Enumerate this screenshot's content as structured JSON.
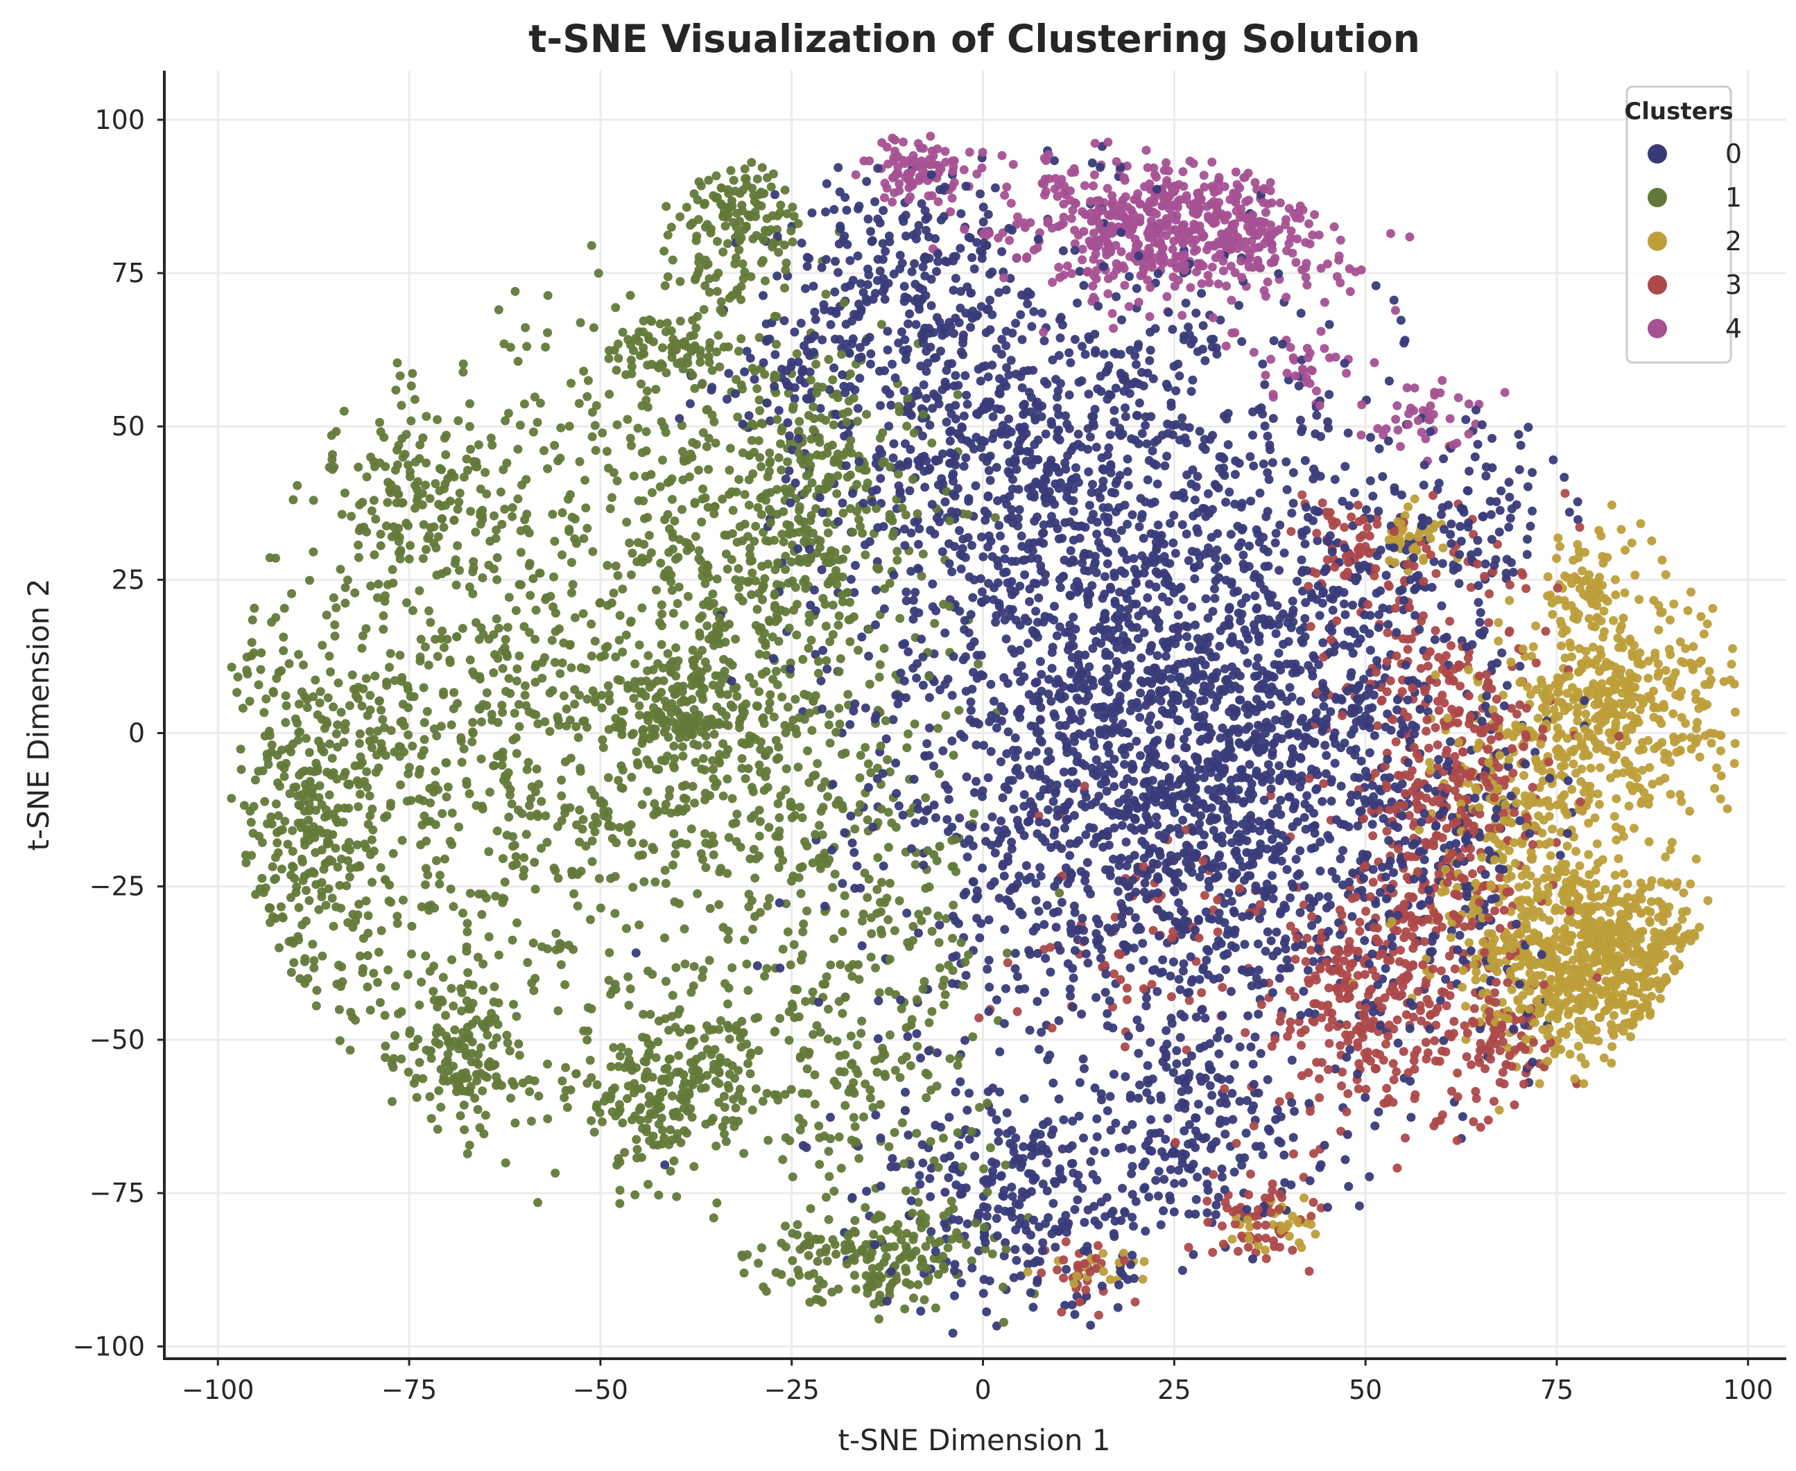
{
  "chart_data": {
    "type": "scatter",
    "title": "t-SNE Visualization of Clustering Solution",
    "xlabel": "t-SNE Dimension 1",
    "ylabel": "t-SNE Dimension 2",
    "xlim": [
      -107,
      105
    ],
    "ylim": [
      -102,
      108
    ],
    "x_ticks": [
      -100,
      -75,
      -50,
      -25,
      0,
      25,
      50,
      75,
      100
    ],
    "y_ticks": [
      -100,
      -75,
      -50,
      -25,
      0,
      25,
      50,
      75,
      100
    ],
    "x_tick_labels": [
      "−100",
      "−75",
      "−50",
      "−25",
      "0",
      "25",
      "50",
      "75",
      "100"
    ],
    "y_tick_labels": [
      "−100",
      "−75",
      "−50",
      "−25",
      "0",
      "25",
      "50",
      "75",
      "100"
    ],
    "grid": true,
    "legend": {
      "title": "Clusters",
      "placement": "top-right",
      "entries": [
        "0",
        "1",
        "2",
        "3",
        "4"
      ]
    },
    "series": [
      {
        "name": "0",
        "color": "#393b79",
        "regions": [
          {
            "cx": 18,
            "cy": 20,
            "sx": 18,
            "sy": 28,
            "n": 1400
          },
          {
            "cx": 25,
            "cy": -20,
            "sx": 17,
            "sy": 18,
            "n": 900
          },
          {
            "cx": 0,
            "cy": 50,
            "sx": 12,
            "sy": 14,
            "n": 400
          },
          {
            "cx": -10,
            "cy": 75,
            "sx": 8,
            "sy": 10,
            "n": 220
          },
          {
            "cx": 40,
            "cy": 10,
            "sx": 12,
            "sy": 18,
            "n": 450
          },
          {
            "cx": 5,
            "cy": -75,
            "sx": 10,
            "sy": 9,
            "n": 300
          },
          {
            "cx": 30,
            "cy": -65,
            "sx": 8,
            "sy": 8,
            "n": 180
          },
          {
            "cx": 60,
            "cy": -20,
            "sx": 8,
            "sy": 20,
            "n": 200
          },
          {
            "cx": 65,
            "cy": 35,
            "sx": 5,
            "sy": 7,
            "n": 80
          },
          {
            "cx": -25,
            "cy": 60,
            "sx": 6,
            "sy": 5,
            "n": 60
          }
        ]
      },
      {
        "name": "1",
        "color": "#637939",
        "regions": [
          {
            "cx": -60,
            "cy": 0,
            "sx": 20,
            "sy": 32,
            "n": 1100
          },
          {
            "cx": -88,
            "cy": -15,
            "sx": 5,
            "sy": 16,
            "n": 250
          },
          {
            "cx": -30,
            "cy": 20,
            "sx": 10,
            "sy": 25,
            "n": 500
          },
          {
            "cx": -68,
            "cy": -52,
            "sx": 4,
            "sy": 6,
            "n": 140
          },
          {
            "cx": -45,
            "cy": -60,
            "sx": 5,
            "sy": 6,
            "n": 130
          },
          {
            "cx": -35,
            "cy": -55,
            "sx": 4,
            "sy": 6,
            "n": 90
          },
          {
            "cx": -32,
            "cy": 83,
            "sx": 4,
            "sy": 6,
            "n": 150
          },
          {
            "cx": -15,
            "cy": -85,
            "sx": 8,
            "sy": 4,
            "n": 180
          },
          {
            "cx": -15,
            "cy": -40,
            "sx": 8,
            "sy": 20,
            "n": 300
          },
          {
            "cx": -75,
            "cy": 40,
            "sx": 5,
            "sy": 6,
            "n": 100
          },
          {
            "cx": -40,
            "cy": 3,
            "sx": 4,
            "sy": 4,
            "n": 120
          },
          {
            "cx": -20,
            "cy": 40,
            "sx": 8,
            "sy": 12,
            "n": 200
          },
          {
            "cx": -42,
            "cy": 62,
            "sx": 5,
            "sy": 3,
            "n": 80
          }
        ]
      },
      {
        "name": "2",
        "color": "#bd9e39",
        "regions": [
          {
            "cx": 80,
            "cy": -38,
            "sx": 9,
            "sy": 8,
            "n": 700
          },
          {
            "cx": 82,
            "cy": 3,
            "sx": 8,
            "sy": 10,
            "n": 450
          },
          {
            "cx": 70,
            "cy": -15,
            "sx": 6,
            "sy": 12,
            "n": 200
          },
          {
            "cx": 78,
            "cy": 25,
            "sx": 3,
            "sy": 4,
            "n": 60
          },
          {
            "cx": 56,
            "cy": 32,
            "sx": 2,
            "sy": 3,
            "n": 40
          },
          {
            "cx": 38,
            "cy": -80,
            "sx": 2.5,
            "sy": 2.5,
            "n": 30
          },
          {
            "cx": 15,
            "cy": -88,
            "sx": 3,
            "sy": 2,
            "n": 20
          }
        ]
      },
      {
        "name": "3",
        "color": "#ad494a",
        "regions": [
          {
            "cx": 60,
            "cy": -10,
            "sx": 7,
            "sy": 20,
            "n": 500
          },
          {
            "cx": 50,
            "cy": -45,
            "sx": 6,
            "sy": 10,
            "n": 250
          },
          {
            "cx": 68,
            "cy": -50,
            "sx": 4,
            "sy": 5,
            "n": 70
          },
          {
            "cx": 36,
            "cy": -78,
            "sx": 4,
            "sy": 4,
            "n": 60
          },
          {
            "cx": 14,
            "cy": -88,
            "sx": 3,
            "sy": 3,
            "n": 30
          },
          {
            "cx": 48,
            "cy": 30,
            "sx": 4,
            "sy": 5,
            "n": 60
          },
          {
            "cx": 25,
            "cy": -35,
            "sx": 12,
            "sy": 10,
            "n": 80
          }
        ]
      },
      {
        "name": "4",
        "color": "#a55194",
        "regions": [
          {
            "cx": 25,
            "cy": 82,
            "sx": 11,
            "sy": 6,
            "n": 600
          },
          {
            "cx": -8,
            "cy": 92,
            "sx": 3,
            "sy": 3,
            "n": 90
          },
          {
            "cx": 58,
            "cy": 52,
            "sx": 4,
            "sy": 3,
            "n": 40
          },
          {
            "cx": 42,
            "cy": 60,
            "sx": 4,
            "sy": 3,
            "n": 30
          }
        ]
      }
    ]
  }
}
